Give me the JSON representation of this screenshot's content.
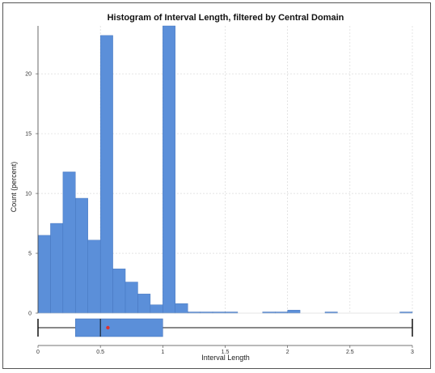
{
  "chart_data": {
    "type": "bar",
    "title": "Histogram of Interval Length, filtered by Central Domain",
    "xlabel": "Interval Length",
    "ylabel": "Count (percent)",
    "xlim": [
      0,
      3
    ],
    "ylim": [
      0,
      24
    ],
    "x_ticks": [
      {
        "value": 0,
        "label": "0"
      },
      {
        "value": 0.5,
        "label": "0.5"
      },
      {
        "value": 1,
        "label": "1"
      },
      {
        "value": 1.5,
        "label": "1.5"
      },
      {
        "value": 2,
        "label": "2"
      },
      {
        "value": 2.5,
        "label": "2.5"
      },
      {
        "value": 3,
        "label": "3"
      }
    ],
    "y_ticks": [
      {
        "value": 0,
        "label": "0"
      },
      {
        "value": 5,
        "label": "5"
      },
      {
        "value": 10,
        "label": "10"
      },
      {
        "value": 15,
        "label": "15"
      },
      {
        "value": 20,
        "label": "20"
      }
    ],
    "grid": true,
    "bar_color": "#5b8fd9",
    "bars": [
      {
        "x0": 0.0,
        "x1": 0.1,
        "y": 6.5
      },
      {
        "x0": 0.1,
        "x1": 0.2,
        "y": 7.5
      },
      {
        "x0": 0.2,
        "x1": 0.3,
        "y": 11.8
      },
      {
        "x0": 0.3,
        "x1": 0.4,
        "y": 9.6
      },
      {
        "x0": 0.4,
        "x1": 0.5,
        "y": 6.1
      },
      {
        "x0": 0.5,
        "x1": 0.6,
        "y": 23.2
      },
      {
        "x0": 0.6,
        "x1": 0.7,
        "y": 3.7
      },
      {
        "x0": 0.7,
        "x1": 0.8,
        "y": 2.6
      },
      {
        "x0": 0.8,
        "x1": 0.9,
        "y": 1.6
      },
      {
        "x0": 0.9,
        "x1": 1.0,
        "y": 0.7
      },
      {
        "x0": 1.0,
        "x1": 1.1,
        "y": 24.0
      },
      {
        "x0": 1.1,
        "x1": 1.2,
        "y": 0.8
      },
      {
        "x0": 1.2,
        "x1": 1.3,
        "y": 0.1
      },
      {
        "x0": 1.3,
        "x1": 1.4,
        "y": 0.1
      },
      {
        "x0": 1.4,
        "x1": 1.5,
        "y": 0.1
      },
      {
        "x0": 1.5,
        "x1": 1.6,
        "y": 0.1
      },
      {
        "x0": 1.8,
        "x1": 1.9,
        "y": 0.1
      },
      {
        "x0": 1.9,
        "x1": 2.0,
        "y": 0.1
      },
      {
        "x0": 2.0,
        "x1": 2.1,
        "y": 0.25
      },
      {
        "x0": 2.3,
        "x1": 2.4,
        "y": 0.1
      },
      {
        "x0": 2.9,
        "x1": 3.0,
        "y": 0.1
      }
    ],
    "boxplot": {
      "min": 0.0,
      "q1": 0.3,
      "median": 0.5,
      "q3": 1.0,
      "max": 3.0,
      "mean": 0.56,
      "box_color": "#5b8fd9",
      "mean_color": "#e0302c"
    }
  }
}
